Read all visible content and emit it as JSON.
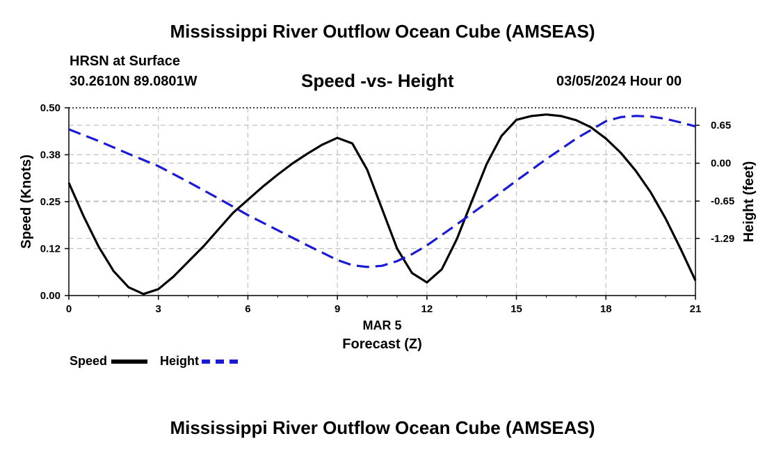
{
  "header": {
    "title": "Mississippi River Outflow Ocean Cube (AMSEAS)",
    "location_line": "HRSN at Surface",
    "coords": "30.2610N  89.0801W",
    "subtitle": "Speed -vs- Height",
    "date": "03/05/2024 Hour 00"
  },
  "footer": {
    "title": "Mississippi River Outflow Ocean Cube (AMSEAS)"
  },
  "legend": {
    "speed_label": "Speed",
    "height_label": "Height"
  },
  "colors": {
    "speed": "#000000",
    "height": "#1a1ad6",
    "grid": "#c0c0c0"
  },
  "chart_data": {
    "type": "line",
    "title": "Speed -vs- Height",
    "xlabel": "Forecast (Z)",
    "xlabel_date": "MAR 5",
    "ylabel_left": "Speed (Knots)",
    "ylabel_right": "Height (feet)",
    "xlim": [
      0,
      21
    ],
    "ylim_left": [
      0,
      0.5
    ],
    "ylim_right": [
      -2.27,
      0.95
    ],
    "x_ticks": [
      0,
      3,
      6,
      9,
      12,
      15,
      18,
      21
    ],
    "x_tick_labels": [
      "0",
      "3",
      "6",
      "9",
      "12",
      "15",
      "18",
      "21"
    ],
    "left_ticks": [
      0.0,
      0.125,
      0.25,
      0.375,
      0.5
    ],
    "left_tick_labels": [
      "0.00",
      "0.12",
      "0.25",
      "0.38",
      "0.50"
    ],
    "right_ticks": [
      0.65,
      0.0,
      -0.65,
      -1.29
    ],
    "right_tick_labels": [
      "0.65",
      "0.00",
      "-0.65",
      "-1.29"
    ],
    "grid": true,
    "series": [
      {
        "name": "Speed",
        "axis": "left",
        "style": "solid",
        "x": [
          0,
          0.5,
          1,
          1.5,
          2,
          2.5,
          3,
          3.5,
          4,
          4.5,
          5,
          5.5,
          6,
          6.5,
          7,
          7.5,
          8,
          8.5,
          9,
          9.5,
          10,
          10.5,
          11,
          11.5,
          12,
          12.5,
          13,
          13.5,
          14,
          14.5,
          15,
          15.5,
          16,
          16.5,
          17,
          17.5,
          18,
          18.5,
          19,
          19.5,
          20,
          20.5,
          21
        ],
        "values": [
          0.3,
          0.21,
          0.13,
          0.065,
          0.022,
          0.004,
          0.017,
          0.05,
          0.09,
          0.13,
          0.175,
          0.22,
          0.255,
          0.29,
          0.322,
          0.352,
          0.378,
          0.402,
          0.42,
          0.405,
          0.335,
          0.23,
          0.125,
          0.06,
          0.035,
          0.07,
          0.15,
          0.25,
          0.35,
          0.425,
          0.468,
          0.478,
          0.482,
          0.478,
          0.467,
          0.448,
          0.418,
          0.38,
          0.332,
          0.275,
          0.205,
          0.125,
          0.04
        ]
      },
      {
        "name": "Height",
        "axis": "right",
        "style": "dashed",
        "x": [
          0,
          1,
          2,
          3,
          4,
          5,
          6,
          7,
          8,
          9,
          9.5,
          10,
          10.5,
          11,
          11.5,
          12,
          13,
          14,
          15,
          16,
          17,
          18,
          18.5,
          19,
          19.5,
          20,
          20.5,
          21
        ],
        "values": [
          0.58,
          0.38,
          0.16,
          -0.05,
          -0.32,
          -0.6,
          -0.89,
          -1.15,
          -1.41,
          -1.66,
          -1.75,
          -1.78,
          -1.76,
          -1.68,
          -1.56,
          -1.41,
          -1.05,
          -0.68,
          -0.3,
          0.07,
          0.42,
          0.72,
          0.79,
          0.81,
          0.8,
          0.76,
          0.7,
          0.63
        ]
      }
    ]
  }
}
